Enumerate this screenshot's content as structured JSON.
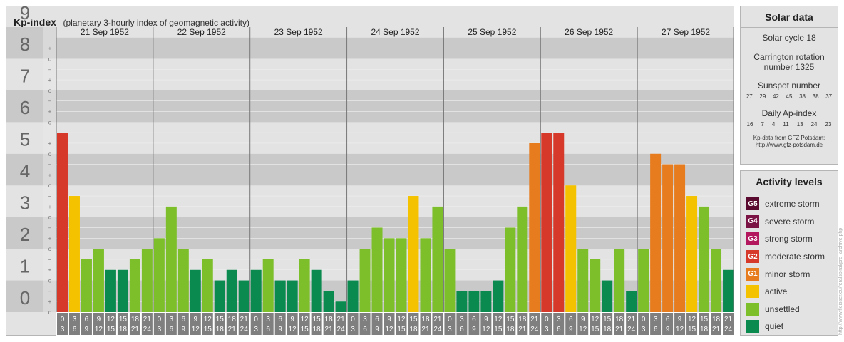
{
  "header": {
    "title": "Kp-index",
    "subtitle": "(planetary 3-hourly index of geomagnetic activity)"
  },
  "solar": {
    "title": "Solar data",
    "cycle": "Solar cycle 18",
    "carrington": "Carrington rotation number 1325",
    "sunspot_label": "Sunspot number",
    "sunspot_values": [
      "27",
      "29",
      "42",
      "45",
      "38",
      "38",
      "37"
    ],
    "ap_label": "Daily Ap-index",
    "ap_values": [
      "16",
      "7",
      "4",
      "11",
      "13",
      "24",
      "23"
    ],
    "source": "Kp-data from GFZ Potsdam:",
    "source_url": "http://www.gfz-potsdam.de"
  },
  "activity": {
    "title": "Activity levels",
    "levels": [
      {
        "code": "G5",
        "label": "extreme storm",
        "color": "#5a0a2e"
      },
      {
        "code": "G4",
        "label": "severe storm",
        "color": "#7b1445"
      },
      {
        "code": "G3",
        "label": "strong storm",
        "color": "#b3185e"
      },
      {
        "code": "G2",
        "label": "moderate storm",
        "color": "#d6382a"
      },
      {
        "code": "G1",
        "label": "minor storm",
        "color": "#e67c1e"
      },
      {
        "code": "",
        "label": "active",
        "color": "#f5c200"
      },
      {
        "code": "",
        "label": "unsettled",
        "color": "#7cbf2a"
      },
      {
        "code": "",
        "label": "quiet",
        "color": "#0b8a50"
      }
    ]
  },
  "side_credit": "http://www.fleisser.eu/feralspiral/pro_archive.php",
  "chart_data": {
    "type": "bar",
    "title": "Kp-index",
    "ylim": [
      0,
      9
    ],
    "y_ticks": [
      "0",
      "1",
      "2",
      "3",
      "4",
      "5",
      "6",
      "7",
      "8",
      "9"
    ],
    "minor_tick_labels": [
      "o",
      "+",
      "−"
    ],
    "days": [
      "21 Sep 1952",
      "22 Sep 1952",
      "23 Sep 1952",
      "24 Sep 1952",
      "25 Sep 1952",
      "26 Sep 1952",
      "27 Sep 1952"
    ],
    "hour_ranges": [
      [
        "0",
        "3"
      ],
      [
        "3",
        "6"
      ],
      [
        "6",
        "9"
      ],
      [
        "9",
        "12"
      ],
      [
        "12",
        "15"
      ],
      [
        "15",
        "18"
      ],
      [
        "18",
        "21"
      ],
      [
        "21",
        "24"
      ]
    ],
    "values": [
      [
        5.667,
        3.667,
        1.667,
        2.0,
        1.333,
        1.333,
        1.667,
        2.0
      ],
      [
        2.333,
        3.333,
        2.0,
        1.333,
        1.667,
        1.0,
        1.333,
        1.0
      ],
      [
        1.333,
        1.667,
        1.0,
        1.0,
        1.667,
        1.333,
        0.667,
        0.333
      ],
      [
        1.0,
        2.0,
        2.667,
        2.333,
        2.333,
        3.667,
        2.333,
        3.333
      ],
      [
        2.0,
        0.667,
        0.667,
        0.667,
        1.0,
        2.667,
        3.333,
        5.333
      ],
      [
        5.667,
        5.667,
        4.0,
        2.0,
        1.667,
        1.0,
        2.0,
        0.667
      ],
      [
        2.0,
        5.0,
        4.667,
        4.667,
        3.667,
        3.333,
        2.0,
        1.333
      ]
    ],
    "level_colors": {
      "quiet": "#0b8a50",
      "unsettled": "#7cbf2a",
      "active": "#f5c200",
      "g1": "#e67c1e",
      "g2": "#d6382a",
      "g3": "#b3185e"
    },
    "band_colors": [
      "#c9c9c9",
      "#e3e3e3"
    ],
    "axis_bg": "#7f7f7f"
  }
}
